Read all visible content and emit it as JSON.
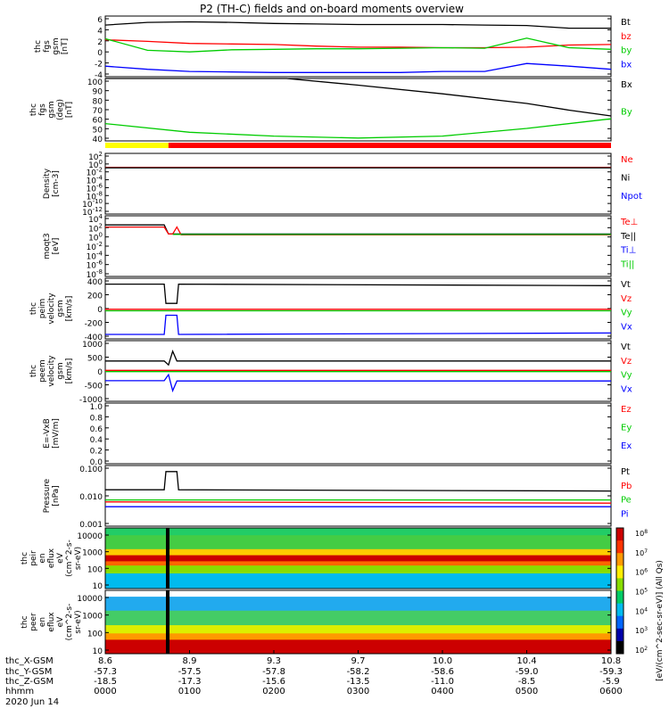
{
  "title": "P2 (TH-C) fields and on-board moments overview",
  "colors": {
    "black": "#000000",
    "red": "#ff0000",
    "green": "#00cc00",
    "blue": "#0000ff",
    "yellow": "#ffff00"
  },
  "x_axis": {
    "ephem_labels": [
      "thc_X-GSM",
      "thc_Y-GSM",
      "thc_Z-GSM",
      "hhmm",
      "2020 Jun 14"
    ],
    "ticks": [
      {
        "x": "8.6",
        "y": "-57.3",
        "z": "-18.5",
        "hhmm": "0000"
      },
      {
        "x": "8.9",
        "y": "-57.5",
        "z": "-17.3",
        "hhmm": "0100"
      },
      {
        "x": "9.3",
        "y": "-57.8",
        "z": "-15.6",
        "hhmm": "0200"
      },
      {
        "x": "9.7",
        "y": "-58.2",
        "z": "-13.5",
        "hhmm": "0300"
      },
      {
        "x": "10.0",
        "y": "-58.6",
        "z": "-11.0",
        "hhmm": "0400"
      },
      {
        "x": "10.4",
        "y": "-59.0",
        "z": "-8.5",
        "hhmm": "0500"
      },
      {
        "x": "10.8",
        "y": "-59.3",
        "z": "-5.9",
        "hhmm": "0600"
      }
    ]
  },
  "spectrogram_colorbar": {
    "title": "[eV/(cm^2-sec-sr-eV)] (All Qs)",
    "ticks": [
      "10^8",
      "10^7",
      "10^6",
      "10^5",
      "10^4",
      "10^3",
      "10^2"
    ]
  },
  "chart_data": [
    {
      "id": "fgs",
      "type": "line",
      "ylabel": [
        "thc",
        "fgs",
        "gsm",
        "[nT]"
      ],
      "ylim": [
        -5,
        6.5
      ],
      "yticks": [
        "6",
        "4",
        "2",
        "0",
        "-2",
        "-4"
      ],
      "legend": [
        {
          "name": "Bt",
          "color": "#000000"
        },
        {
          "name": "bz",
          "color": "#ff0000"
        },
        {
          "name": "by",
          "color": "#00cc00"
        },
        {
          "name": "bx",
          "color": "#0000ff"
        }
      ],
      "series": [
        {
          "name": "Bt",
          "color": "#000000",
          "t": [
            0,
            0.5,
            1,
            1.5,
            2,
            2.5,
            3,
            3.5,
            4,
            4.5,
            5,
            5.5,
            6
          ],
          "v": [
            4.8,
            5.3,
            5.4,
            5.3,
            5.1,
            5.0,
            4.9,
            4.9,
            4.9,
            4.8,
            4.7,
            4.2,
            4.2
          ]
        },
        {
          "name": "bz",
          "color": "#ff0000",
          "t": [
            0,
            0.5,
            1,
            1.5,
            2,
            2.5,
            3,
            3.5,
            4,
            4.5,
            5,
            5.5,
            6
          ],
          "v": [
            2.0,
            1.7,
            1.3,
            1.2,
            1.1,
            0.8,
            0.6,
            0.6,
            0.5,
            0.5,
            0.6,
            1.0,
            1.1
          ]
        },
        {
          "name": "by",
          "color": "#00cc00",
          "t": [
            0,
            0.5,
            1,
            1.5,
            2,
            2.5,
            3,
            3.5,
            4,
            4.5,
            5,
            5.5,
            6
          ],
          "v": [
            2.2,
            0.0,
            -0.3,
            0.1,
            0.2,
            0.3,
            0.3,
            0.4,
            0.5,
            0.4,
            2.3,
            0.5,
            0.2
          ]
        },
        {
          "name": "bx",
          "color": "#0000ff",
          "t": [
            0,
            0.5,
            1,
            1.5,
            2,
            2.5,
            3,
            3.5,
            4,
            4.5,
            5,
            5.5,
            6
          ],
          "v": [
            -3.0,
            -3.6,
            -4.0,
            -4.1,
            -4.2,
            -4.2,
            -4.2,
            -4.2,
            -4.0,
            -4.0,
            -2.5,
            -3.0,
            -3.6
          ]
        }
      ]
    },
    {
      "id": "fgs_deg",
      "type": "line",
      "ylabel": [
        "thc",
        "fgs",
        "gsm",
        "(deg)",
        "[nT]"
      ],
      "ylim": [
        35,
        100
      ],
      "yticks": [
        "100",
        "90",
        "80",
        "70",
        "60",
        "50",
        "40"
      ],
      "legend": [
        {
          "name": "Bx",
          "color": "#000000"
        },
        {
          "name": "By",
          "color": "#00cc00"
        }
      ],
      "series": [
        {
          "name": "Bx",
          "color": "#000000",
          "t": [
            0,
            2.15,
            3,
            4,
            5,
            5.5,
            6
          ],
          "v": [
            100,
            100,
            93,
            84,
            74,
            67,
            61
          ]
        },
        {
          "name": "By",
          "color": "#00cc00",
          "t": [
            0,
            1,
            2,
            3,
            4,
            5,
            6
          ],
          "v": [
            53,
            44,
            40,
            38,
            40,
            48,
            58
          ]
        }
      ]
    },
    {
      "id": "mode_bar",
      "type": "bar",
      "segments": [
        {
          "from": 0,
          "to": 0.75,
          "color": "#ffff00"
        },
        {
          "from": 0.75,
          "to": 6,
          "color": "#ff0000"
        }
      ]
    },
    {
      "id": "density",
      "type": "line",
      "ylabel": [
        "Density",
        "[cm-3]"
      ],
      "ylim": [
        -13,
        3
      ],
      "log_scale": true,
      "yticks": [
        "10^2",
        "10^0",
        "10^-2",
        "10^-4",
        "10^-6",
        "10^-8",
        "10^-10",
        "10^-12"
      ],
      "legend": [
        {
          "name": "Ne",
          "color": "#ff0000"
        },
        {
          "name": "Ni",
          "color": "#000000"
        },
        {
          "name": "Npot",
          "color": "#0000ff"
        }
      ],
      "series": [
        {
          "name": "Ne",
          "color": "#ff0000",
          "t": [
            0,
            6
          ],
          "v": [
            -0.7,
            -0.7
          ]
        },
        {
          "name": "Ni",
          "color": "#000000",
          "t": [
            0,
            6
          ],
          "v": [
            -0.8,
            -0.8
          ]
        }
      ]
    },
    {
      "id": "temp",
      "type": "line",
      "ylabel": [
        "moqt3",
        "[eV]"
      ],
      "ylim": [
        -9,
        5
      ],
      "log_scale": true,
      "yticks": [
        "10^4",
        "10^2",
        "10^0",
        "10^-2",
        "10^-4",
        "10^-6",
        "10^-8"
      ],
      "legend": [
        {
          "name": "Te⊥",
          "color": "#ff0000"
        },
        {
          "name": "Te||",
          "color": "#000000"
        },
        {
          "name": "Ti⊥",
          "color": "#0000ff"
        },
        {
          "name": "Ti||",
          "color": "#00cc00"
        }
      ],
      "series": [
        {
          "name": "Te||",
          "color": "#000000",
          "t": [
            0,
            0.7,
            0.75,
            0.8,
            6
          ],
          "v": [
            2.9,
            2.9,
            0.8,
            0.8,
            0.8
          ]
        },
        {
          "name": "Te⊥",
          "color": "#ff0000",
          "t": [
            0,
            0.7,
            0.75,
            0.8,
            0.85,
            0.9,
            6
          ],
          "v": [
            2.4,
            2.4,
            0.8,
            0.8,
            2.4,
            0.6,
            0.6
          ]
        },
        {
          "name": "Ti||",
          "color": "#00cc00",
          "t": [
            0.8,
            6
          ],
          "v": [
            0.7,
            0.7
          ]
        }
      ]
    },
    {
      "id": "peim_vel",
      "type": "line",
      "ylabel": [
        "thc",
        "peim",
        "velocity",
        "gsm",
        "[km/s]"
      ],
      "ylim": [
        -400,
        420
      ],
      "yticks": [
        "400",
        "200",
        "0",
        "-200",
        "-400"
      ],
      "legend": [
        {
          "name": "Vt",
          "color": "#000000"
        },
        {
          "name": "Vz",
          "color": "#ff0000"
        },
        {
          "name": "Vy",
          "color": "#00cc00"
        },
        {
          "name": "Vx",
          "color": "#0000ff"
        }
      ],
      "series": [
        {
          "name": "Vt",
          "color": "#000000",
          "t": [
            0,
            0.7,
            0.72,
            0.85,
            0.87,
            6
          ],
          "v": [
            340,
            340,
            80,
            80,
            340,
            320
          ]
        },
        {
          "name": "Vz",
          "color": "#ff0000",
          "t": [
            0,
            6
          ],
          "v": [
            0,
            0
          ]
        },
        {
          "name": "Vy",
          "color": "#00cc00",
          "t": [
            0,
            6
          ],
          "v": [
            -20,
            -20
          ]
        },
        {
          "name": "Vx",
          "color": "#0000ff",
          "t": [
            0,
            0.7,
            0.72,
            0.85,
            0.87,
            6
          ],
          "v": [
            -340,
            -340,
            -80,
            -80,
            -340,
            -320
          ]
        }
      ]
    },
    {
      "id": "peem_vel",
      "type": "line",
      "ylabel": [
        "thc",
        "peem",
        "velocity",
        "gsm",
        "[km/s]"
      ],
      "ylim": [
        -1000,
        1000
      ],
      "yticks": [
        "1000",
        "500",
        "0",
        "-500",
        "-1000"
      ],
      "legend": [
        {
          "name": "Vt",
          "color": "#000000"
        },
        {
          "name": "Vz",
          "color": "#ff0000"
        },
        {
          "name": "Vy",
          "color": "#00cc00"
        },
        {
          "name": "Vx",
          "color": "#0000ff"
        }
      ],
      "series": [
        {
          "name": "Vt",
          "color": "#000000",
          "t": [
            0,
            0.7,
            0.75,
            0.8,
            0.85,
            6
          ],
          "v": [
            330,
            330,
            200,
            650,
            330,
            330
          ]
        },
        {
          "name": "Vz",
          "color": "#ff0000",
          "t": [
            0,
            6
          ],
          "v": [
            20,
            20
          ]
        },
        {
          "name": "Vy",
          "color": "#00cc00",
          "t": [
            0,
            6
          ],
          "v": [
            -20,
            -20
          ]
        },
        {
          "name": "Vx",
          "color": "#0000ff",
          "t": [
            0,
            0.7,
            0.75,
            0.8,
            0.85,
            6
          ],
          "v": [
            -320,
            -320,
            -120,
            -650,
            -330,
            -330
          ]
        }
      ]
    },
    {
      "id": "efield",
      "type": "line",
      "ylabel": [
        "E=-VxB",
        "[mV/m]"
      ],
      "ylim": [
        0,
        1
      ],
      "yticks": [
        "1.0",
        "0.8",
        "0.6",
        "0.4",
        "0.2",
        "0.0"
      ],
      "legend": [
        {
          "name": "Ez",
          "color": "#ff0000"
        },
        {
          "name": "Ey",
          "color": "#00cc00"
        },
        {
          "name": "Ex",
          "color": "#0000ff"
        }
      ],
      "series": []
    },
    {
      "id": "pressure",
      "type": "line",
      "ylabel": [
        "Pressure",
        "[nPa]"
      ],
      "ylim": [
        -3,
        -0.5
      ],
      "log_scale": true,
      "yticks": [
        "0.100",
        "0.010",
        "0.001"
      ],
      "legend": [
        {
          "name": "Pt",
          "color": "#000000"
        },
        {
          "name": "Pb",
          "color": "#ff0000"
        },
        {
          "name": "Pe",
          "color": "#00cc00"
        },
        {
          "name": "Pi",
          "color": "#0000ff"
        }
      ],
      "series": [
        {
          "name": "Pt",
          "color": "#000000",
          "t": [
            0,
            0.7,
            0.72,
            0.85,
            0.87,
            6
          ],
          "v": [
            -1.5,
            -1.5,
            -0.75,
            -0.75,
            -1.5,
            -1.55
          ]
        },
        {
          "name": "Pe",
          "color": "#00cc00",
          "t": [
            0,
            6
          ],
          "v": [
            -1.92,
            -1.92
          ]
        },
        {
          "name": "Pb",
          "color": "#ff0000",
          "t": [
            0,
            6
          ],
          "v": [
            -2.0,
            -2.05
          ]
        },
        {
          "name": "Pi",
          "color": "#0000ff",
          "t": [
            0,
            6
          ],
          "v": [
            -2.2,
            -2.2
          ]
        }
      ]
    },
    {
      "id": "peir",
      "type": "heatmap",
      "ylabel": [
        "thc",
        "peir",
        "en",
        "eflux",
        "eV",
        "(cm^2-s-",
        "sr-eV)"
      ],
      "yticks": [
        "10000",
        "1000",
        "100",
        "10"
      ],
      "bands": [
        {
          "from": 0.0,
          "to": 0.12,
          "color": "#22cc66"
        },
        {
          "from": 0.12,
          "to": 0.35,
          "color": "#44cc44"
        },
        {
          "from": 0.35,
          "to": 0.45,
          "color": "#ffcc00"
        },
        {
          "from": 0.45,
          "to": 0.55,
          "color": "#cc0000"
        },
        {
          "from": 0.55,
          "to": 0.62,
          "color": "#ff6600"
        },
        {
          "from": 0.62,
          "to": 0.75,
          "color": "#88dd00"
        },
        {
          "from": 0.75,
          "to": 1.0,
          "color": "#00bbee"
        }
      ]
    },
    {
      "id": "peer",
      "type": "heatmap",
      "ylabel": [
        "thc",
        "peer",
        "en",
        "eflux",
        "eV",
        "(cm^2-s-",
        "sr-eV)"
      ],
      "yticks": [
        "10000",
        "1000",
        "100",
        "10"
      ],
      "bands": [
        {
          "from": 0.0,
          "to": 0.1,
          "color": "#ffffff"
        },
        {
          "from": 0.1,
          "to": 0.32,
          "color": "#22aaee"
        },
        {
          "from": 0.32,
          "to": 0.55,
          "color": "#44cc66"
        },
        {
          "from": 0.55,
          "to": 0.68,
          "color": "#ddee00"
        },
        {
          "from": 0.68,
          "to": 0.78,
          "color": "#ff9900"
        },
        {
          "from": 0.78,
          "to": 1.0,
          "color": "#cc0000"
        }
      ]
    }
  ]
}
